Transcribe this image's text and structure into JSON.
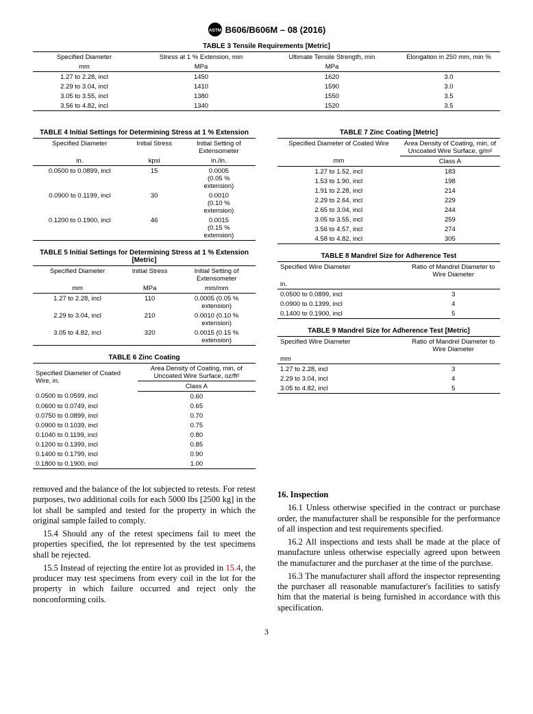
{
  "header": {
    "designation": "B606/B606M – 08 (2016)"
  },
  "table3": {
    "title": "TABLE 3 Tensile Requirements [Metric]",
    "cols": [
      "Specified Diameter",
      "Stress at 1 % Extension, min",
      "Ultimate Tensile Strength, min",
      "Elongation in 250 mm, min %"
    ],
    "units": [
      "mm",
      "MPa",
      "MPa",
      ""
    ],
    "rows": [
      [
        "1.27 to 2.28, incl",
        "1450",
        "1620",
        "3.0"
      ],
      [
        "2.29 to 3.04, incl",
        "1410",
        "1590",
        "3.0"
      ],
      [
        "3.05 to 3.55, incl",
        "1380",
        "1550",
        "3.5"
      ],
      [
        "3.56 to 4.82, incl",
        "1340",
        "1520",
        "3.5"
      ]
    ]
  },
  "table4": {
    "title": "TABLE 4 Initial Settings for Determining Stress at 1 % Extension",
    "cols": [
      "Specified Diameter",
      "Initial Stress",
      "Initial Setting of Extensometer"
    ],
    "units": [
      "in.",
      "kpsi",
      "in./in."
    ],
    "rows": [
      [
        "0.0500 to 0.0899, incl",
        "15",
        "0.0005\n(0.05 %\nextension)"
      ],
      [
        "0.0900 to 0.1199, incl",
        "30",
        "0.0010\n(0.10 %\nextension)"
      ],
      [
        "0.1200 to 0.1900, incl",
        "46",
        "0.0015\n(0.15 %\nextension)"
      ]
    ]
  },
  "table5": {
    "title": "TABLE 5 Initial Settings for Determining Stress at 1 % Extension [Metric]",
    "cols": [
      "Specified Diameter",
      "Initial Stress",
      "Initial Setting of Extensometer"
    ],
    "units": [
      "mm",
      "MPa",
      "mm/mm"
    ],
    "rows": [
      [
        "1.27 to 2.28, incl",
        "110",
        "0.0005 (0.05 % extension)"
      ],
      [
        "2.29 to 3.04, incl",
        "210",
        "0.0010 (0.10 % extension)"
      ],
      [
        "3.05 to 4.82, incl",
        "320",
        "0.0015 (0.15 % extension)"
      ]
    ]
  },
  "table6": {
    "title": "TABLE 6 Zinc Coating",
    "col1": "Specified Diameter of Coated Wire, in.",
    "col2": "Area Density of Coating, min, of Uncoated Wire Surface, oz/ft²",
    "class": "Class A",
    "rows": [
      [
        "0.0500 to 0.0599, incl",
        "0.60"
      ],
      [
        "0.0600 to 0.0749, incl",
        "0.65"
      ],
      [
        "0.0750 to 0.0899, incl",
        "0.70"
      ],
      [
        "0.0900 to 0.1039, incl",
        "0.75"
      ],
      [
        "0.1040 to 0.1199, incl",
        "0.80"
      ],
      [
        "0.1200 to 0.1399, incl",
        "0.85"
      ],
      [
        "0.1400 to 0.1799, incl",
        "0.90"
      ],
      [
        "0.1800 to 0.1900, incl",
        "1.00"
      ]
    ]
  },
  "table7": {
    "title": "TABLE 7 Zinc Coating [Metric]",
    "col1": "Specified Diameter of Coated Wire",
    "col2": "Area Density of Coating, min, of Uncoated Wire Surface, g/m²",
    "unit": "mm",
    "class": "Class A",
    "rows": [
      [
        "1.27 to 1.52, incl",
        "183"
      ],
      [
        "1.53 to 1.90, incl",
        "198"
      ],
      [
        "1.91 to 2.28, incl",
        "214"
      ],
      [
        "2.29 to 2.64, incl",
        "229"
      ],
      [
        "2.65 to 3.04, incl",
        "244"
      ],
      [
        "3.05 to 3.55, incl",
        "259"
      ],
      [
        "3.56 to 4.57, incl",
        "274"
      ],
      [
        "4.58 to 4.82, incl",
        "305"
      ]
    ]
  },
  "table8": {
    "title": "TABLE 8 Mandrel Size for Adherence Test",
    "col1": "Specified Wire Diameter",
    "col2": "Ratio of Mandrel Diameter to Wire Diameter",
    "unit": "in.",
    "rows": [
      [
        "0.0500 to 0.0899, incl",
        "3"
      ],
      [
        "0.0900 to 0.1399, incl",
        "4"
      ],
      [
        "0.1400 to 0.1900, incl",
        "5"
      ]
    ]
  },
  "table9": {
    "title": "TABLE 9 Mandrel Size for Adherence Test [Metric]",
    "col1": "Specified Wire Diameter",
    "col2": "Ratio of Mandrel Diameter to Wire Diameter",
    "unit": "mm",
    "rows": [
      [
        "1.27 to 2.28, incl",
        "3"
      ],
      [
        "2.29 to 3.04, incl",
        "4"
      ],
      [
        "3.05 to 4.82, incl",
        "5"
      ]
    ]
  },
  "body": {
    "left": {
      "p1": "removed and the balance of the lot subjected to retests. For retest purposes, two additional coils for each 5000 lbs [2500 kg] in the lot shall be sampled and tested for the property in which the original sample failed to comply.",
      "p2a": "15.4 Should any of the retest specimens fail to meet the properties specified, the lot represented by the test specimens shall be rejected.",
      "p3a": "15.5 Instead of rejecting the entire lot as provided in ",
      "p3link": "15.4",
      "p3b": ", the producer may test specimens from every coil in the lot for the property in which failure occurred and reject only the nonconforming coils."
    },
    "right": {
      "head": "16.  Inspection",
      "p1": "16.1 Unless otherwise specified in the contract or purchase order, the manufacturer shall be responsible for the performance of all inspection and test requirements specified.",
      "p2": "16.2 All inspections and tests shall be made at the place of manufacture unless otherwise especially agreed upon between the manufacturer and the purchaser at the time of the purchase.",
      "p3": "16.3 The manufacturer shall afford the inspector representing the purchaser all reasonable manufacturer's facilities to satisfy him that the material is being furnished in accordance with this specification."
    }
  },
  "pagenum": "3"
}
